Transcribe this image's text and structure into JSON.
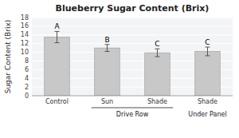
{
  "chart_data": {
    "type": "bar",
    "title": "Blueberry Sugar Content (Brix)",
    "ylabel": "Sugar Content (Brix)",
    "categories": [
      "Control",
      "Sun",
      "Shade",
      "Shade"
    ],
    "x_groups": [
      null,
      "Drive Row",
      "Drive Row",
      "Under Panel"
    ],
    "values": [
      13.5,
      11.0,
      9.9,
      10.2
    ],
    "errors": [
      1.3,
      0.8,
      0.9,
      1.0
    ],
    "letters": [
      "A",
      "B",
      "C",
      "C"
    ],
    "color": "#c8c8c8",
    "ylim": [
      0,
      18
    ],
    "yticks": [
      0,
      2,
      4,
      6,
      8,
      10,
      12,
      14,
      16,
      18
    ],
    "grid": true
  }
}
